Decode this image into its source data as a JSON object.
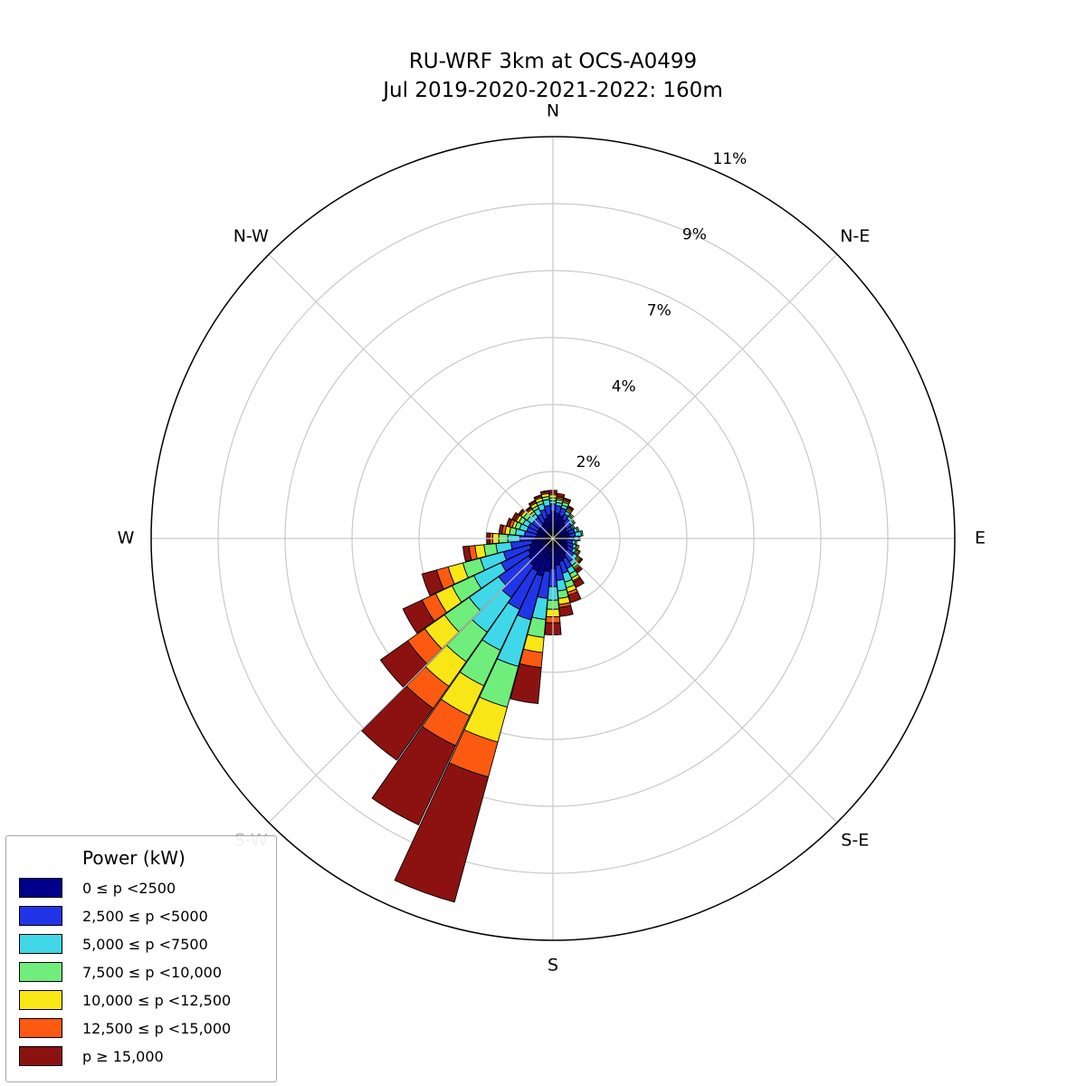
{
  "title": {
    "line1": "RU-WRF 3km at OCS-A0499",
    "line2": "Jul 2019-2020-2021-2022: 160m"
  },
  "legend": {
    "title": "Power (kW)",
    "entries": [
      {
        "label": "0 ≤  p <2500",
        "color": "#00008b"
      },
      {
        "label": "2,500 ≤  p <5000",
        "color": "#2135e8"
      },
      {
        "label": "5,000 ≤  p <7500",
        "color": "#40d8e8"
      },
      {
        "label": "7,500 ≤  p <10,000",
        "color": "#70ee7c"
      },
      {
        "label": "10,000 ≤  p <12,500",
        "color": "#f9e616"
      },
      {
        "label": "12,500 ≤  p <15,000",
        "color": "#fb5a10"
      },
      {
        "label": "p  ≥ 15,000",
        "color": "#8c1212"
      }
    ]
  },
  "chart_data": {
    "type": "windrose-polar-stacked-bar",
    "title": "RU-WRF 3km at OCS-A0499 — Jul 2019-2020-2021-2022: 160m",
    "units": "percent frequency of occurrence",
    "rmax": 13.333,
    "grid": true,
    "radial_ticks": [
      {
        "label": "2%",
        "value": 2.222
      },
      {
        "label": "4%",
        "value": 4.444
      },
      {
        "label": "7%",
        "value": 6.667
      },
      {
        "label": "9%",
        "value": 8.889
      },
      {
        "label": "11%",
        "value": 11.111
      }
    ],
    "compass_labels": [
      {
        "label": "N",
        "angle_deg": 0,
        "muted": false
      },
      {
        "label": "N-E",
        "angle_deg": 45,
        "muted": false
      },
      {
        "label": "E",
        "angle_deg": 90,
        "muted": false
      },
      {
        "label": "S-E",
        "angle_deg": 135,
        "muted": false
      },
      {
        "label": "S",
        "angle_deg": 180,
        "muted": false
      },
      {
        "label": "S-W",
        "angle_deg": 225,
        "muted": true
      },
      {
        "label": "W",
        "angle_deg": 270,
        "muted": false
      },
      {
        "label": "N-W",
        "angle_deg": 315,
        "muted": false
      }
    ],
    "sector_width_deg": 10,
    "directions_deg": [
      0,
      10,
      20,
      30,
      40,
      50,
      60,
      70,
      80,
      90,
      100,
      110,
      120,
      130,
      140,
      150,
      160,
      170,
      180,
      190,
      200,
      210,
      220,
      230,
      240,
      250,
      260,
      270,
      280,
      290,
      300,
      310,
      320,
      330,
      340,
      350
    ],
    "series": [
      {
        "name": "0 ≤ p <2500",
        "color": "#00008b",
        "values": [
          0.9,
          0.85,
          0.8,
          0.7,
          0.6,
          0.55,
          0.5,
          0.55,
          0.55,
          0.5,
          0.45,
          0.5,
          0.55,
          0.6,
          0.65,
          0.75,
          0.8,
          0.9,
          1.0,
          1.1,
          1.3,
          1.2,
          1.1,
          1.0,
          0.9,
          0.8,
          0.7,
          0.6,
          0.55,
          0.55,
          0.55,
          0.55,
          0.55,
          0.6,
          0.7,
          0.8
        ]
      },
      {
        "name": "2,500 ≤ p <5000",
        "color": "#2135e8",
        "values": [
          0.25,
          0.25,
          0.25,
          0.2,
          0.2,
          0.2,
          0.2,
          0.2,
          0.2,
          0.2,
          0.2,
          0.2,
          0.2,
          0.25,
          0.3,
          0.35,
          0.4,
          0.5,
          0.6,
          0.9,
          1.5,
          1.4,
          1.3,
          1.2,
          1.0,
          0.9,
          0.7,
          0.5,
          0.4,
          0.35,
          0.35,
          0.3,
          0.3,
          0.3,
          0.3,
          0.3
        ]
      },
      {
        "name": "5,000 ≤ p <7500",
        "color": "#40d8e8",
        "values": [
          0.1,
          0.1,
          0.1,
          0.1,
          0.1,
          0.1,
          0.05,
          0.1,
          0.2,
          0.15,
          0.1,
          0.1,
          0.1,
          0.15,
          0.15,
          0.2,
          0.3,
          0.35,
          0.45,
          0.7,
          1.6,
          1.5,
          1.4,
          1.2,
          1.0,
          0.8,
          0.5,
          0.4,
          0.3,
          0.25,
          0.2,
          0.2,
          0.15,
          0.2,
          0.2,
          0.2
        ]
      },
      {
        "name": "7,500 ≤ p <10,000",
        "color": "#70ee7c",
        "values": [
          0.1,
          0.1,
          0.1,
          0.05,
          0.05,
          0.05,
          0.05,
          0.05,
          0.05,
          0.05,
          0.05,
          0.05,
          0.05,
          0.05,
          0.1,
          0.15,
          0.2,
          0.25,
          0.3,
          0.6,
          1.4,
          1.3,
          1.2,
          1.0,
          0.8,
          0.6,
          0.4,
          0.3,
          0.2,
          0.15,
          0.15,
          0.15,
          0.1,
          0.1,
          0.1,
          0.1
        ]
      },
      {
        "name": "10,000 ≤ p <12,500",
        "color": "#f9e616",
        "values": [
          0.1,
          0.05,
          0.05,
          0.05,
          0.05,
          0,
          0,
          0,
          0,
          0,
          0,
          0.05,
          0.05,
          0.05,
          0.05,
          0.1,
          0.15,
          0.2,
          0.25,
          0.5,
          1.2,
          1.1,
          1.0,
          0.8,
          0.6,
          0.5,
          0.3,
          0.2,
          0.15,
          0.1,
          0.1,
          0.1,
          0.1,
          0.1,
          0.1,
          0.1
        ]
      },
      {
        "name": "12,500 ≤ p <15,000",
        "color": "#fb5a10",
        "values": [
          0.05,
          0.05,
          0.05,
          0.05,
          0,
          0,
          0,
          0,
          0,
          0,
          0,
          0,
          0.05,
          0.05,
          0.05,
          0.05,
          0.1,
          0.1,
          0.2,
          0.5,
          1.2,
          1.1,
          0.9,
          0.7,
          0.5,
          0.4,
          0.2,
          0.1,
          0.1,
          0.1,
          0.05,
          0.05,
          0.05,
          0.05,
          0.05,
          0.05
        ]
      },
      {
        "name": "p ≥ 15,000",
        "color": "#8c1212",
        "values": [
          0.1,
          0.1,
          0.05,
          0.05,
          0,
          0,
          0,
          0,
          0,
          0,
          0,
          0,
          0,
          0.05,
          0.1,
          0.2,
          0.25,
          0.3,
          0.4,
          1.2,
          4.3,
          2.9,
          2.1,
          1.1,
          0.7,
          0.5,
          0.2,
          0.1,
          0.1,
          0.1,
          0.1,
          0.05,
          0.05,
          0.05,
          0.05,
          0.05
        ]
      }
    ]
  }
}
